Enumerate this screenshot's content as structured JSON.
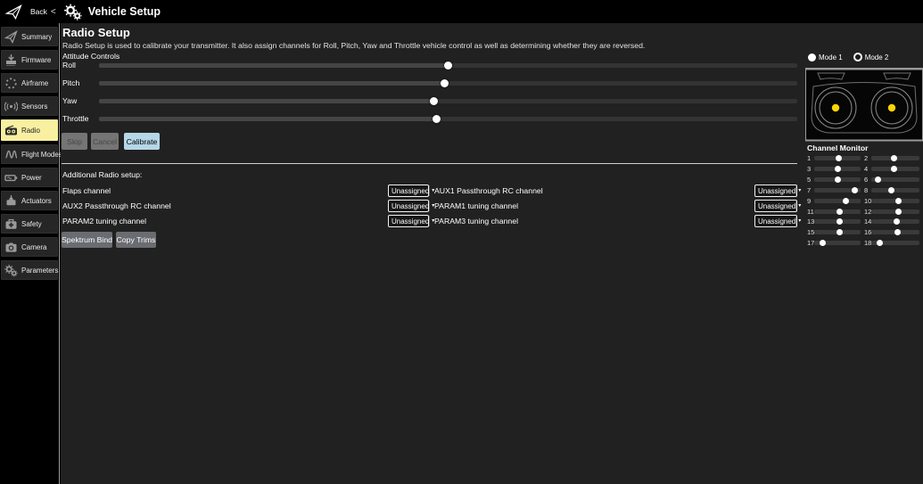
{
  "topbar": {
    "back_label": "Back",
    "back_chevron": "<",
    "title": "Vehicle Setup"
  },
  "sidebar": {
    "items": [
      {
        "id": "summary",
        "label": "Summary",
        "icon": "paper-plane-icon",
        "selected": false
      },
      {
        "id": "firmware",
        "label": "Firmware",
        "icon": "firmware-download-icon",
        "selected": false
      },
      {
        "id": "airframe",
        "label": "Airframe",
        "icon": "dotted-circle-icon",
        "selected": false
      },
      {
        "id": "sensors",
        "label": "Sensors",
        "icon": "signal-waves-icon",
        "selected": false
      },
      {
        "id": "radio",
        "label": "Radio",
        "icon": "radio-icon",
        "selected": true
      },
      {
        "id": "flight-modes",
        "label": "Flight Modes",
        "icon": "sine-wave-icon",
        "selected": false
      },
      {
        "id": "power",
        "label": "Power",
        "icon": "battery-icon",
        "selected": false
      },
      {
        "id": "actuators",
        "label": "Actuators",
        "icon": "motor-icon",
        "selected": false
      },
      {
        "id": "safety",
        "label": "Safety",
        "icon": "first-aid-kit-icon",
        "selected": false
      },
      {
        "id": "camera",
        "label": "Camera",
        "icon": "camera-icon",
        "selected": false
      },
      {
        "id": "parameters",
        "label": "Parameters",
        "icon": "gears-icon",
        "selected": false
      }
    ]
  },
  "radio_setup": {
    "title": "Radio Setup",
    "description": "Radio Setup is used to calibrate your transmitter. It also assign channels for Roll, Pitch, Yaw and Throttle vehicle control as well as determining whether they are reversed.",
    "attitude_label": "Attitude Controls",
    "sliders": [
      {
        "label": "Roll",
        "value": 0.5
      },
      {
        "label": "Pitch",
        "value": 0.495
      },
      {
        "label": "Yaw",
        "value": 0.48
      },
      {
        "label": "Throttle",
        "value": 0.483
      }
    ],
    "buttons": {
      "skip": {
        "label": "Skip",
        "enabled": false
      },
      "cancel": {
        "label": "Cancel",
        "enabled": false
      },
      "calibrate": {
        "label": "Calibrate",
        "enabled": true
      }
    },
    "additional_label": "Additional Radio setup:",
    "assignment_rows": [
      {
        "left_label": "Flaps channel",
        "left_value": "Unassigned",
        "right_label": "AUX1 Passthrough RC channel",
        "right_value": "Unassigned"
      },
      {
        "left_label": "AUX2 Passthrough RC channel",
        "left_value": "Unassigned",
        "right_label": "PARAM1 tuning channel",
        "right_value": "Unassigned"
      },
      {
        "left_label": "PARAM2 tuning channel",
        "left_value": "Unassigned",
        "right_label": "PARAM3 tuning channel",
        "right_value": "Unassigned"
      }
    ],
    "bottom_buttons": {
      "spektrum_bind": "Spektrum Bind",
      "copy_trims": "Copy Trims"
    }
  },
  "right_panel": {
    "modes": [
      {
        "label": "Mode 1",
        "selected": false
      },
      {
        "label": "Mode 2",
        "selected": true
      }
    ],
    "channel_monitor": {
      "title": "Channel Monitor",
      "channels": [
        {
          "ch": 1,
          "value": 0.52
        },
        {
          "ch": 2,
          "value": 0.47
        },
        {
          "ch": 3,
          "value": 0.51
        },
        {
          "ch": 4,
          "value": 0.47
        },
        {
          "ch": 5,
          "value": 0.5
        },
        {
          "ch": 6,
          "value": 0.13
        },
        {
          "ch": 7,
          "value": 0.88
        },
        {
          "ch": 8,
          "value": 0.41
        },
        {
          "ch": 9,
          "value": 0.68
        },
        {
          "ch": 10,
          "value": 0.56
        },
        {
          "ch": 11,
          "value": 0.55
        },
        {
          "ch": 12,
          "value": 0.56
        },
        {
          "ch": 13,
          "value": 0.55
        },
        {
          "ch": 14,
          "value": 0.52
        },
        {
          "ch": 15,
          "value": 0.55
        },
        {
          "ch": 16,
          "value": 0.54
        },
        {
          "ch": 17,
          "value": 0.19
        },
        {
          "ch": 18,
          "value": 0.17
        }
      ]
    }
  },
  "colors": {
    "selected_yellow": "#F8F0A0",
    "calibrate_blue": "#B5D7E8",
    "stick_dot_yellow": "#FFD400"
  }
}
